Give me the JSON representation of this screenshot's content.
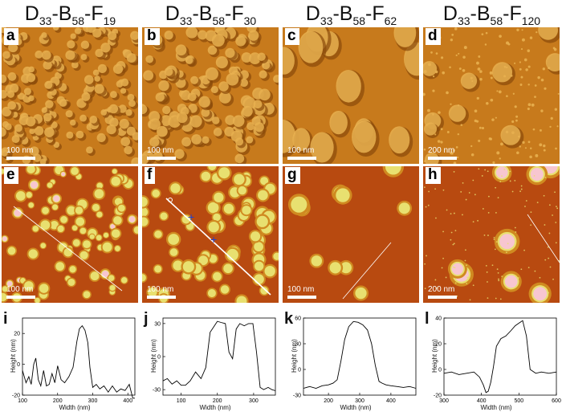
{
  "headers": [
    {
      "base": "D",
      "d": "33",
      "b": "58",
      "f": "19"
    },
    {
      "base": "D",
      "d": "33",
      "b": "58",
      "f": "30"
    },
    {
      "base": "D",
      "d": "33",
      "b": "58",
      "f": "62"
    },
    {
      "base": "D",
      "d": "33",
      "b": "58",
      "f": "120"
    }
  ],
  "panels_top": [
    {
      "letter": "a",
      "scale": "100 nm"
    },
    {
      "letter": "b",
      "scale": "100 nm"
    },
    {
      "letter": "c",
      "scale": "100 nm"
    },
    {
      "letter": "d",
      "scale": "200 nm"
    }
  ],
  "panels_mid": [
    {
      "letter": "e",
      "scale": "100 nm"
    },
    {
      "letter": "f",
      "scale": "100 nm"
    },
    {
      "letter": "g",
      "scale": "100 nm"
    },
    {
      "letter": "h",
      "scale": "200 nm"
    }
  ],
  "colors": {
    "phase_bg": "#c77a1c",
    "phase_dark": "#8a4a0a",
    "phase_light": "#e8b050",
    "height_bg": "#b84a10",
    "height_mid": "#d08a20",
    "height_top": "#e8e070",
    "height_peak": "#f7c6d0"
  },
  "chart_data": [
    {
      "type": "line",
      "letter": "i",
      "xlabel": "Width (nm)",
      "ylabel": "Height (nm)",
      "xlim": [
        100,
        420
      ],
      "ylim": [
        -20,
        30
      ],
      "xticks": [
        "100",
        "200",
        "300",
        "400"
      ],
      "yticks": [
        "-20",
        "0",
        "20"
      ],
      "x": [
        100,
        110,
        118,
        125,
        132,
        138,
        145,
        152,
        160,
        168,
        176,
        184,
        192,
        200,
        210,
        220,
        232,
        244,
        255,
        262,
        270,
        278,
        286,
        292,
        300,
        310,
        320,
        332,
        344,
        356,
        368,
        380,
        392,
        404,
        414,
        420
      ],
      "y": [
        -4,
        -12,
        -8,
        -13,
        0,
        4,
        -10,
        -14,
        -4,
        -14,
        -13,
        -6,
        -12,
        -1,
        -10,
        -12,
        -8,
        -2,
        15,
        23,
        25,
        22,
        14,
        -2,
        -15,
        -13,
        -16,
        -14,
        -18,
        -14,
        -18,
        -16,
        -17,
        -13,
        -22,
        -22
      ]
    },
    {
      "type": "line",
      "letter": "j",
      "xlabel": "Width (nm)",
      "ylabel": "Height (nm)",
      "xlim": [
        50,
        360
      ],
      "ylim": [
        -35,
        35
      ],
      "xticks": [
        "100",
        "200",
        "300"
      ],
      "yticks": [
        "-30",
        "0",
        "30"
      ],
      "x": [
        50,
        62,
        75,
        88,
        100,
        112,
        125,
        140,
        155,
        168,
        180,
        192,
        200,
        210,
        222,
        232,
        242,
        252,
        262,
        274,
        286,
        298,
        308,
        318,
        328,
        340,
        350,
        360
      ],
      "y": [
        -22,
        -20,
        -25,
        -22,
        -26,
        -26,
        -22,
        -14,
        -20,
        -10,
        22,
        28,
        32,
        31,
        30,
        4,
        -2,
        25,
        30,
        28,
        30,
        30,
        4,
        -28,
        -30,
        -28,
        -30,
        -31
      ]
    },
    {
      "type": "line",
      "letter": "k",
      "xlabel": "Width (nm)",
      "ylabel": "Height (nm)",
      "xlim": [
        120,
        480
      ],
      "ylim": [
        -30,
        60
      ],
      "xticks": [
        "200",
        "300",
        "400"
      ],
      "yticks": [
        "-30",
        "0",
        "30",
        "60"
      ],
      "x": [
        120,
        140,
        160,
        180,
        200,
        215,
        228,
        240,
        252,
        265,
        280,
        295,
        310,
        325,
        338,
        350,
        362,
        372,
        384,
        400,
        420,
        440,
        460,
        480
      ],
      "y": [
        -22,
        -20,
        -22,
        -19,
        -18,
        -16,
        -12,
        10,
        35,
        50,
        56,
        55,
        52,
        46,
        30,
        5,
        -14,
        -16,
        -18,
        -19,
        -20,
        -21,
        -20,
        -22
      ]
    },
    {
      "type": "line",
      "letter": "l",
      "xlabel": "Width (nm)",
      "ylabel": "Height (nm)",
      "xlim": [
        300,
        600
      ],
      "ylim": [
        -20,
        40
      ],
      "xticks": [
        "300",
        "400",
        "500",
        "600"
      ],
      "yticks": [
        "-20",
        "0",
        "20",
        "40"
      ],
      "x": [
        300,
        320,
        340,
        360,
        380,
        395,
        405,
        412,
        418,
        425,
        432,
        440,
        452,
        465,
        478,
        490,
        500,
        510,
        520,
        530,
        545,
        560,
        580,
        600
      ],
      "y": [
        -3,
        -2,
        -4,
        -3,
        -2,
        -6,
        -12,
        -18,
        -17,
        -10,
        2,
        18,
        24,
        26,
        30,
        34,
        36,
        38,
        26,
        0,
        -3,
        -2,
        -3,
        -2
      ]
    }
  ]
}
